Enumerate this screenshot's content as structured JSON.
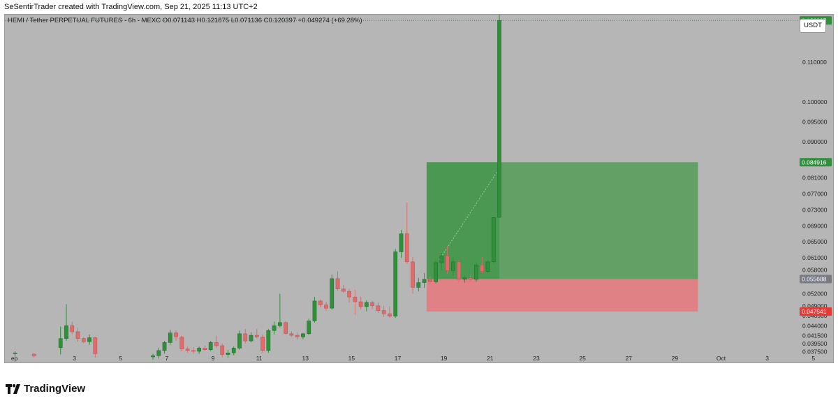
{
  "caption": "SeSentirTrader created with TradingView.com, Sep 21, 2025 11:13 UTC+2",
  "legend": "HEMI / Tether PERPETUAL FUTURES · 6h · MEXC  O0.071143 H0.121875 L0.071136 C0.120397 +0.049274 (+69.28%)",
  "currency_button": "USDT",
  "brand": "TradingView",
  "colors": {
    "background": "#b6b6b6",
    "up": "#2f8f3a",
    "down": "#e06b6b",
    "target_zone": "#4a9a4e",
    "stop_zone": "#e8787e",
    "current_tag": "#2f8f3a",
    "entry_tag": "#787b86",
    "stop_tag": "#e53935"
  },
  "chart_data": {
    "type": "candlestick",
    "timeframe": "6h",
    "ylim": [
      0.0355,
      0.1215
    ],
    "y_ticks": [
      "0.110000",
      "0.100000",
      "0.095000",
      "0.090000",
      "0.081000",
      "0.077000",
      "0.073000",
      "0.069000",
      "0.065000",
      "0.061000",
      "0.058000",
      "0.052000",
      "0.049000",
      "0.046500",
      "0.044000",
      "0.041500",
      "0.039500",
      "0.037500"
    ],
    "x_ticks": [
      {
        "label": "ep",
        "day": 0.4
      },
      {
        "label": "3",
        "day": 3
      },
      {
        "label": "5",
        "day": 5
      },
      {
        "label": "7",
        "day": 7
      },
      {
        "label": "9",
        "day": 9
      },
      {
        "label": "11",
        "day": 11
      },
      {
        "label": "13",
        "day": 13
      },
      {
        "label": "15",
        "day": 15
      },
      {
        "label": "17",
        "day": 17
      },
      {
        "label": "19",
        "day": 19
      },
      {
        "label": "21",
        "day": 21
      },
      {
        "label": "23",
        "day": 23
      },
      {
        "label": "25",
        "day": 25
      },
      {
        "label": "27",
        "day": 27
      },
      {
        "label": "29",
        "day": 29
      },
      {
        "label": "Oct",
        "day": 31
      },
      {
        "label": "3",
        "day": 33
      },
      {
        "label": "5",
        "day": 35
      }
    ],
    "price_tags": [
      {
        "label": "0.120397",
        "value": 0.120397,
        "role": "current"
      },
      {
        "label": "0.084916",
        "value": 0.084916,
        "role": "target"
      },
      {
        "label": "0.055688",
        "value": 0.055688,
        "role": "entry"
      },
      {
        "label": "0.047541",
        "value": 0.047541,
        "role": "stop"
      }
    ],
    "position": {
      "type": "long",
      "start_day": 18.25,
      "end_day": 30.0,
      "entry": 0.055688,
      "target": 0.084916,
      "stop": 0.047541
    },
    "candles": [
      [
        0.43,
        0.037,
        0.0376,
        0.0362,
        0.0372
      ],
      [
        1.25,
        0.0369,
        0.0372,
        0.036,
        0.0365
      ],
      [
        2.4,
        0.0385,
        0.0438,
        0.0368,
        0.0408
      ],
      [
        2.65,
        0.0408,
        0.0494,
        0.0402,
        0.044
      ],
      [
        2.9,
        0.044,
        0.045,
        0.0419,
        0.0425
      ],
      [
        3.15,
        0.0425,
        0.0435,
        0.04,
        0.0408
      ],
      [
        3.4,
        0.0408,
        0.0412,
        0.0396,
        0.04
      ],
      [
        3.65,
        0.04,
        0.0418,
        0.0392,
        0.041
      ],
      [
        3.9,
        0.041,
        0.0412,
        0.036,
        0.037
      ],
      [
        6.4,
        0.0362,
        0.037,
        0.0355,
        0.0365
      ],
      [
        6.65,
        0.0365,
        0.0385,
        0.0358,
        0.0378
      ],
      [
        6.9,
        0.0378,
        0.0402,
        0.037,
        0.0398
      ],
      [
        7.15,
        0.0398,
        0.043,
        0.0392,
        0.0422
      ],
      [
        7.4,
        0.0422,
        0.0428,
        0.0402,
        0.0412
      ],
      [
        7.65,
        0.0412,
        0.0415,
        0.0376,
        0.0382
      ],
      [
        7.9,
        0.0382,
        0.0388,
        0.0372,
        0.0378
      ],
      [
        8.15,
        0.0378,
        0.0386,
        0.037,
        0.0376
      ],
      [
        8.4,
        0.0376,
        0.0388,
        0.037,
        0.0384
      ],
      [
        8.65,
        0.0384,
        0.039,
        0.0376,
        0.038
      ],
      [
        8.9,
        0.038,
        0.0402,
        0.0376,
        0.0398
      ],
      [
        9.15,
        0.0398,
        0.0415,
        0.0385,
        0.039
      ],
      [
        9.4,
        0.039,
        0.0395,
        0.0362,
        0.0368
      ],
      [
        9.65,
        0.0368,
        0.038,
        0.036,
        0.0372
      ],
      [
        9.9,
        0.0372,
        0.0388,
        0.0366,
        0.0384
      ],
      [
        10.15,
        0.0384,
        0.0428,
        0.038,
        0.042
      ],
      [
        10.4,
        0.042,
        0.0432,
        0.0396,
        0.0402
      ],
      [
        10.65,
        0.0402,
        0.0424,
        0.0398,
        0.0416
      ],
      [
        10.9,
        0.0416,
        0.0432,
        0.0408,
        0.0412
      ],
      [
        11.15,
        0.0412,
        0.0418,
        0.0372,
        0.0378
      ],
      [
        11.4,
        0.0378,
        0.0432,
        0.0372,
        0.0428
      ],
      [
        11.65,
        0.0428,
        0.045,
        0.0418,
        0.044
      ],
      [
        11.9,
        0.044,
        0.052,
        0.0436,
        0.0448
      ],
      [
        12.15,
        0.0448,
        0.0452,
        0.0418,
        0.042
      ],
      [
        12.4,
        0.042,
        0.0426,
        0.0412,
        0.0416
      ],
      [
        12.65,
        0.0416,
        0.0424,
        0.0406,
        0.0412
      ],
      [
        12.9,
        0.0412,
        0.0422,
        0.0406,
        0.042
      ],
      [
        13.15,
        0.042,
        0.0458,
        0.0416,
        0.0452
      ],
      [
        13.4,
        0.0452,
        0.0512,
        0.0448,
        0.0502
      ],
      [
        13.65,
        0.0502,
        0.0506,
        0.0486,
        0.0492
      ],
      [
        13.9,
        0.0492,
        0.05,
        0.0478,
        0.0484
      ],
      [
        14.15,
        0.0484,
        0.0568,
        0.048,
        0.0558
      ],
      [
        14.4,
        0.0558,
        0.0576,
        0.0528,
        0.0532
      ],
      [
        14.65,
        0.0532,
        0.0542,
        0.0522,
        0.0526
      ],
      [
        14.9,
        0.0526,
        0.0532,
        0.0498,
        0.0512
      ],
      [
        15.15,
        0.0512,
        0.053,
        0.0468,
        0.05
      ],
      [
        15.4,
        0.05,
        0.0512,
        0.0482,
        0.0488
      ],
      [
        15.65,
        0.0488,
        0.0504,
        0.0476,
        0.0498
      ],
      [
        15.9,
        0.0498,
        0.0502,
        0.0482,
        0.049
      ],
      [
        16.15,
        0.049,
        0.0498,
        0.0472,
        0.0478
      ],
      [
        16.4,
        0.0478,
        0.049,
        0.0462,
        0.047
      ],
      [
        16.65,
        0.047,
        0.0488,
        0.046,
        0.0464
      ],
      [
        16.9,
        0.0464,
        0.0632,
        0.046,
        0.0625
      ],
      [
        17.15,
        0.0625,
        0.068,
        0.061,
        0.067
      ],
      [
        17.4,
        0.067,
        0.0748,
        0.0595,
        0.06
      ],
      [
        17.65,
        0.06,
        0.0612,
        0.052,
        0.0536
      ],
      [
        17.9,
        0.0536,
        0.056,
        0.0526,
        0.0548
      ],
      [
        18.15,
        0.0548,
        0.0572,
        0.0535,
        0.0556
      ],
      [
        18.4,
        0.0556,
        0.0562,
        0.0544,
        0.055
      ],
      [
        18.65,
        0.055,
        0.0605,
        0.0546,
        0.0598
      ],
      [
        18.9,
        0.0598,
        0.0622,
        0.0578,
        0.0615
      ],
      [
        19.15,
        0.0615,
        0.064,
        0.057,
        0.0578
      ],
      [
        19.4,
        0.0578,
        0.0612,
        0.0566,
        0.06
      ],
      [
        19.65,
        0.06,
        0.0604,
        0.0548,
        0.0556
      ],
      [
        19.9,
        0.0556,
        0.0566,
        0.0548,
        0.056
      ],
      [
        20.15,
        0.056,
        0.0568,
        0.055,
        0.0556
      ],
      [
        20.4,
        0.0556,
        0.0598,
        0.055,
        0.0592
      ],
      [
        20.65,
        0.0592,
        0.0612,
        0.0572,
        0.0576
      ],
      [
        20.9,
        0.0576,
        0.0605,
        0.0572,
        0.06
      ],
      [
        21.15,
        0.06,
        0.0712,
        0.0596,
        0.0711
      ],
      [
        21.4,
        0.071143,
        0.121875,
        0.071136,
        0.120397
      ]
    ]
  }
}
